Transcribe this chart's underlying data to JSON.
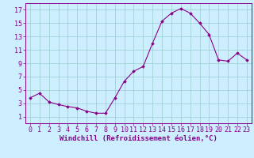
{
  "x": [
    0,
    1,
    2,
    3,
    4,
    5,
    6,
    7,
    8,
    9,
    10,
    11,
    12,
    13,
    14,
    15,
    16,
    17,
    18,
    19,
    20,
    21,
    22,
    23
  ],
  "y": [
    3.8,
    4.5,
    3.2,
    2.8,
    2.5,
    2.3,
    1.8,
    1.5,
    1.5,
    3.8,
    6.3,
    7.8,
    8.5,
    12.0,
    15.3,
    16.5,
    17.2,
    16.5,
    15.0,
    13.3,
    9.5,
    9.3,
    10.5,
    9.5
  ],
  "line_color": "#880088",
  "marker": "D",
  "marker_size": 1.8,
  "bg_color": "#cceeff",
  "grid_color": "#99cccc",
  "tick_color": "#880088",
  "xlabel": "Windchill (Refroidissement éolien,°C)",
  "xlim": [
    -0.5,
    23.5
  ],
  "ylim": [
    0,
    18
  ],
  "yticks": [
    1,
    3,
    5,
    7,
    9,
    11,
    13,
    15,
    17
  ],
  "xticks": [
    0,
    1,
    2,
    3,
    4,
    5,
    6,
    7,
    8,
    9,
    10,
    11,
    12,
    13,
    14,
    15,
    16,
    17,
    18,
    19,
    20,
    21,
    22,
    23
  ],
  "xlabel_fontsize": 6.5,
  "tick_fontsize": 6.0,
  "linewidth": 0.8
}
